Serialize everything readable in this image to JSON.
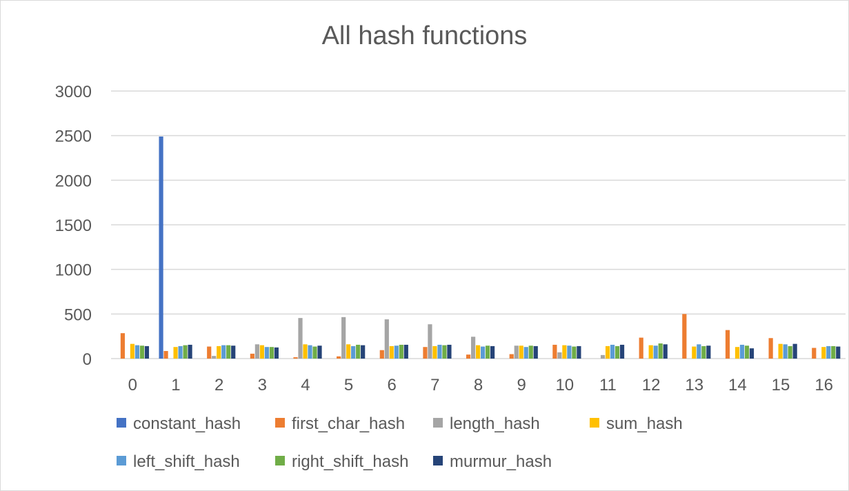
{
  "chart_data": {
    "type": "bar",
    "title": "All hash functions",
    "xlabel": "",
    "ylabel": "",
    "ylim": [
      0,
      3000
    ],
    "yticks": [
      0,
      500,
      1000,
      1500,
      2000,
      2500,
      3000
    ],
    "grid": true,
    "legend_position": "bottom",
    "categories": [
      "0",
      "1",
      "2",
      "3",
      "4",
      "5",
      "6",
      "7",
      "8",
      "9",
      "10",
      "11",
      "12",
      "13",
      "14",
      "15",
      "16"
    ],
    "series": [
      {
        "name": "constant_hash",
        "color": "#4472c4",
        "values": [
          0,
          2490,
          0,
          0,
          0,
          0,
          0,
          0,
          0,
          0,
          0,
          0,
          0,
          0,
          0,
          0,
          0
        ]
      },
      {
        "name": "first_char_hash",
        "color": "#ed7d31",
        "values": [
          285,
          85,
          135,
          55,
          15,
          25,
          95,
          130,
          45,
          50,
          155,
          0,
          235,
          500,
          320,
          230,
          120
        ]
      },
      {
        "name": "length_hash",
        "color": "#a5a5a5",
        "values": [
          0,
          0,
          30,
          160,
          455,
          465,
          440,
          385,
          245,
          145,
          70,
          40,
          0,
          0,
          0,
          0,
          0
        ]
      },
      {
        "name": "sum_hash",
        "color": "#ffc000",
        "values": [
          165,
          130,
          140,
          150,
          160,
          160,
          140,
          140,
          150,
          145,
          150,
          140,
          150,
          135,
          130,
          165,
          130
        ]
      },
      {
        "name": "left_shift_hash",
        "color": "#5b9bd5",
        "values": [
          150,
          140,
          150,
          130,
          150,
          140,
          145,
          155,
          135,
          130,
          145,
          155,
          145,
          160,
          155,
          160,
          140
        ]
      },
      {
        "name": "right_shift_hash",
        "color": "#70ad47",
        "values": [
          145,
          150,
          150,
          130,
          135,
          155,
          155,
          150,
          145,
          145,
          135,
          140,
          170,
          140,
          145,
          140,
          140
        ]
      },
      {
        "name": "murmur_hash",
        "color": "#264478",
        "values": [
          140,
          155,
          145,
          125,
          145,
          150,
          155,
          155,
          140,
          140,
          140,
          155,
          160,
          145,
          115,
          165,
          135
        ]
      }
    ]
  }
}
